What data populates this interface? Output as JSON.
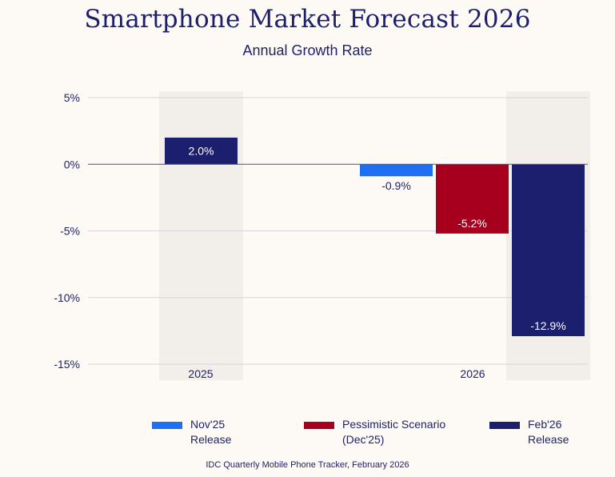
{
  "chart_data": {
    "type": "bar",
    "title": "Smartphone Market Forecast 2026",
    "subtitle": "Annual Growth Rate",
    "categories": [
      "2025",
      "2026"
    ],
    "series": [
      {
        "name": "Nov'25 Release",
        "color": "#1f6ff2",
        "values": [
          null,
          -0.9
        ],
        "labels": [
          null,
          "-0.9%"
        ]
      },
      {
        "name": "Pessimistic Scenario (Dec'25)",
        "color": "#a6001e",
        "values": [
          null,
          -5.2
        ],
        "labels": [
          null,
          "-5.2%"
        ]
      },
      {
        "name": "Feb'26 Release",
        "color": "#1b1f6e",
        "values": [
          2.0,
          -12.9
        ],
        "labels": [
          "2.0%",
          "-12.9%"
        ]
      }
    ],
    "ylim": [
      -15,
      5
    ],
    "yticks": [
      5,
      0,
      -5,
      -10,
      -15
    ],
    "ytick_labels": [
      "5%",
      "0%",
      "-5%",
      "-10%",
      "-15%"
    ],
    "grid": true,
    "highlighted_bars": [
      "2025 Feb'26 Release",
      "2026 Feb'26 Release"
    ],
    "legend_position": "bottom",
    "source": "IDC Quarterly Mobile Phone Tracker, February 2026"
  },
  "legend": [
    {
      "label": "Nov'25\nRelease",
      "color": "#1f6ff2"
    },
    {
      "label": "Pessimistic Scenario\n(Dec'25)",
      "color": "#a6001e"
    },
    {
      "label": "Feb'26\nRelease",
      "color": "#1b1f6e"
    }
  ],
  "colors": {
    "highlight_band": "#f2eeea",
    "grid": "#d6d4e0",
    "zero_line": "#4a4d8a",
    "text": "#1f2266"
  }
}
